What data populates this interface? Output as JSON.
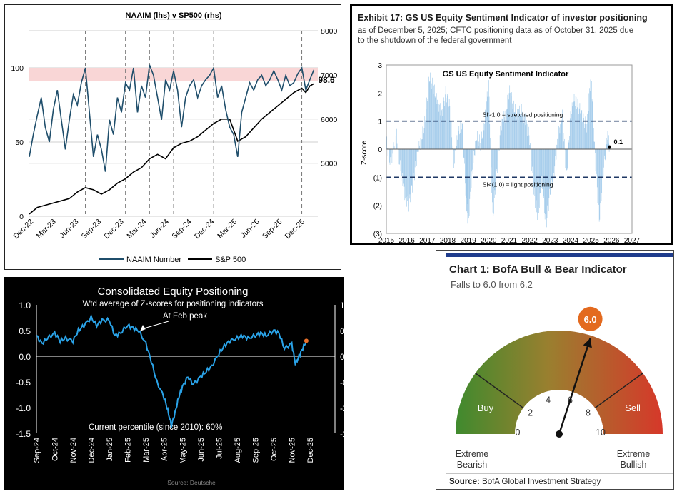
{
  "chart_data": [
    {
      "type": "line",
      "title": "NAAIM (lhs) v SP500 (rhs)",
      "x_tick_labels": [
        "Dec-22",
        "Mar-23",
        "Jun-23",
        "Sep-23",
        "Dec-23",
        "Mar-24",
        "Jun-24",
        "Sep-24",
        "Dec-24",
        "Mar-25",
        "Jun-25",
        "Sep-25",
        "Dec-25"
      ],
      "y_left_ticks": [
        "0",
        "50",
        "100"
      ],
      "y_right_ticks": [
        "5000",
        "6000",
        "7000",
        "8000"
      ],
      "ylim_left": [
        0,
        125
      ],
      "ylim_right": [
        3800,
        8000
      ],
      "x_range": [
        0,
        36
      ],
      "shaded_band": [
        91,
        100
      ],
      "vlines_x": [
        7,
        12,
        15,
        18,
        23,
        34
      ],
      "last_value_label": "98.6",
      "series": [
        {
          "name": "NAAIM Number",
          "color": "#1f4e6b",
          "x": [
            0,
            0.5,
            1,
            1.5,
            2,
            2.5,
            3,
            3.5,
            4,
            4.5,
            5,
            5.5,
            6,
            6.5,
            7,
            7.5,
            8,
            8.5,
            9,
            9.5,
            10,
            10.5,
            11,
            11.5,
            12,
            12.5,
            13,
            13.5,
            14,
            14.5,
            15,
            15.5,
            16,
            16.5,
            17,
            17.5,
            18,
            18.5,
            19,
            19.5,
            20,
            20.5,
            21,
            21.5,
            22,
            22.5,
            23,
            23.5,
            24,
            24.5,
            25,
            25.5,
            26,
            26.5,
            27,
            27.5,
            28,
            28.5,
            29,
            29.5,
            30,
            30.5,
            31,
            31.5,
            32,
            32.5,
            33,
            33.5,
            34,
            34.5,
            35,
            35.5
          ],
          "y": [
            40,
            55,
            68,
            80,
            60,
            50,
            72,
            85,
            65,
            45,
            65,
            82,
            75,
            90,
            100,
            70,
            40,
            55,
            45,
            30,
            65,
            55,
            80,
            70,
            90,
            85,
            100,
            70,
            88,
            80,
            102,
            95,
            80,
            65,
            92,
            85,
            98,
            85,
            60,
            80,
            88,
            92,
            80,
            88,
            92,
            95,
            100,
            80,
            88,
            72,
            60,
            55,
            40,
            70,
            80,
            90,
            85,
            92,
            95,
            88,
            92,
            98,
            92,
            85,
            95,
            88,
            90,
            96,
            100,
            85,
            92,
            98.6
          ]
        },
        {
          "name": "S&P 500",
          "color": "#000000",
          "x": [
            0,
            1,
            2,
            3,
            4,
            5,
            6,
            7,
            8,
            9,
            10,
            11,
            12,
            13,
            14,
            15,
            16,
            17,
            18,
            19,
            20,
            21,
            22,
            23,
            24,
            25,
            26,
            27,
            28,
            29,
            30,
            31,
            32,
            33,
            34,
            34.5,
            35,
            35.5
          ],
          "y": [
            3850,
            4000,
            4050,
            4100,
            4150,
            4200,
            4350,
            4450,
            4400,
            4300,
            4400,
            4550,
            4650,
            4800,
            4900,
            5100,
            5200,
            5100,
            5350,
            5450,
            5500,
            5600,
            5750,
            5900,
            6000,
            6000,
            5500,
            5600,
            5800,
            6000,
            6150,
            6300,
            6450,
            6600,
            6700,
            6600,
            6750,
            6800
          ]
        }
      ]
    },
    {
      "type": "bar",
      "exhibit_title": "Exhibit 17: GS US Equity Sentiment Indicator of investor positioning",
      "subtitle": "as of December 5, 2025; CFTC positioning data as of October 31, 2025 due to the shutdown of the federal government",
      "title": "GS US Equity  Sentiment Indicator",
      "ylabel": "Z-score",
      "y_tick_labels": [
        "3",
        "2",
        "1",
        "0",
        "(1)",
        "(2)",
        "(3)"
      ],
      "x_tick_labels": [
        "2015",
        "2016",
        "2017",
        "2018",
        "2019",
        "2020",
        "2021",
        "2022",
        "2023",
        "2024",
        "2025",
        "2026",
        "2027"
      ],
      "ylim": [
        -3,
        3
      ],
      "x_range": [
        2015,
        2027
      ],
      "threshold_upper": 1.0,
      "threshold_lower": -1.0,
      "upper_label": "SI>1.0 = stretched positioning",
      "lower_label": "SI<(1.0) = light positioning",
      "current_value_label": "0.1",
      "current_value": 0.1,
      "color": "#9fc9ea",
      "series_points": [
        [
          2015.0,
          0.3
        ],
        [
          2015.2,
          -0.5
        ],
        [
          2015.5,
          0.5
        ],
        [
          2015.7,
          -0.8
        ],
        [
          2015.9,
          -1.6
        ],
        [
          2016.1,
          -2.0
        ],
        [
          2016.3,
          -1.2
        ],
        [
          2016.5,
          -0.3
        ],
        [
          2016.7,
          0.4
        ],
        [
          2016.9,
          1.0
        ],
        [
          2017.1,
          2.6
        ],
        [
          2017.3,
          2.2
        ],
        [
          2017.5,
          1.8
        ],
        [
          2017.7,
          1.2
        ],
        [
          2017.9,
          2.0
        ],
        [
          2018.1,
          1.5
        ],
        [
          2018.3,
          -0.5
        ],
        [
          2018.5,
          0.5
        ],
        [
          2018.7,
          1.0
        ],
        [
          2018.9,
          -1.8
        ],
        [
          2019.0,
          -2.6
        ],
        [
          2019.2,
          -0.8
        ],
        [
          2019.4,
          0.5
        ],
        [
          2019.6,
          0.2
        ],
        [
          2019.8,
          1.0
        ],
        [
          2020.0,
          2.3
        ],
        [
          2020.2,
          -2.5
        ],
        [
          2020.4,
          -0.8
        ],
        [
          2020.6,
          0.8
        ],
        [
          2020.8,
          1.2
        ],
        [
          2021.0,
          2.1
        ],
        [
          2021.2,
          1.6
        ],
        [
          2021.4,
          1.2
        ],
        [
          2021.6,
          1.5
        ],
        [
          2021.8,
          1.0
        ],
        [
          2022.0,
          0.4
        ],
        [
          2022.2,
          -1.5
        ],
        [
          2022.4,
          -2.4
        ],
        [
          2022.6,
          -1.2
        ],
        [
          2022.8,
          -2.7
        ],
        [
          2023.0,
          -1.5
        ],
        [
          2023.2,
          -0.8
        ],
        [
          2023.4,
          0.5
        ],
        [
          2023.6,
          1.3
        ],
        [
          2023.8,
          -1.0
        ],
        [
          2024.0,
          1.2
        ],
        [
          2024.2,
          1.8
        ],
        [
          2024.4,
          1.5
        ],
        [
          2024.6,
          1.1
        ],
        [
          2024.8,
          0.8
        ],
        [
          2025.0,
          2.8
        ],
        [
          2025.2,
          -0.3
        ],
        [
          2025.4,
          -2.5
        ],
        [
          2025.6,
          -0.8
        ],
        [
          2025.8,
          0.5
        ],
        [
          2025.9,
          0.1
        ]
      ]
    },
    {
      "type": "line",
      "title": "Consolidated Equity Positioning",
      "subtitle": "Wtd average of Z-scores for positioning indicators",
      "annotation_peak": "At Feb peak",
      "annotation_percentile": "Current percentile (since 2010): 60%",
      "source": "Source: Deutsche",
      "y_tick_labels": [
        "1.0",
        "0.5",
        "0.0",
        "-0.5",
        "-1.0",
        "-1.5"
      ],
      "x_tick_labels": [
        "Sep-24",
        "Oct-24",
        "Nov-24",
        "Dec-24",
        "Jan-25",
        "Feb-25",
        "Mar-25",
        "Apr-25",
        "May-25",
        "Jun-25",
        "Jul-25",
        "Aug-25",
        "Sep-25",
        "Oct-25",
        "Nov-25",
        "Dec-25"
      ],
      "ylim": [
        -1.5,
        1.0
      ],
      "x_range": [
        0,
        15
      ],
      "line_color": "#2aa3e8",
      "marker_color": "#e8702a",
      "x": [
        0,
        0.3,
        0.6,
        1,
        1.3,
        1.6,
        2,
        2.3,
        2.6,
        3,
        3.3,
        3.6,
        4,
        4.3,
        4.6,
        5,
        5.3,
        5.6,
        6,
        6.3,
        6.6,
        7,
        7.2,
        7.4,
        7.6,
        7.8,
        8,
        8.3,
        8.6,
        9,
        9.3,
        9.6,
        10,
        10.3,
        10.6,
        11,
        11.3,
        11.6,
        12,
        12.3,
        12.6,
        13,
        13.3,
        13.6,
        14,
        14.2,
        14.4,
        14.6,
        14.8
      ],
      "y": [
        0.4,
        0.25,
        0.35,
        0.45,
        0.3,
        0.35,
        0.3,
        0.5,
        0.6,
        0.75,
        0.6,
        0.7,
        0.7,
        0.4,
        0.45,
        0.6,
        0.55,
        0.5,
        0.25,
        -0.1,
        -0.5,
        -0.8,
        -1.05,
        -1.35,
        -1.1,
        -0.8,
        -0.6,
        -0.4,
        -0.55,
        -0.4,
        -0.3,
        -0.2,
        0.05,
        0.2,
        0.3,
        0.35,
        0.4,
        0.35,
        0.4,
        0.45,
        0.4,
        0.5,
        0.45,
        0.15,
        0.25,
        -0.15,
        0.0,
        0.15,
        0.3
      ]
    },
    {
      "type": "gauge",
      "title": "Chart 1: BofA Bull & Bear Indicator",
      "subtitle": "Falls to 6.0 from 6.2",
      "value": 6.0,
      "value_label": "6.0",
      "range": [
        0,
        10
      ],
      "tick_labels": [
        "0",
        "2",
        "4",
        "6",
        "8",
        "10"
      ],
      "zone_buy_label": "Buy",
      "zone_sell_label": "Sell",
      "left_label_1": "Extreme",
      "left_label_2": "Bearish",
      "right_label_1": "Extreme",
      "right_label_2": "Bullish",
      "source_bold": "Source:",
      "source_text": " BofA Global Investment Strategy",
      "accent": "#e36a1f"
    }
  ]
}
